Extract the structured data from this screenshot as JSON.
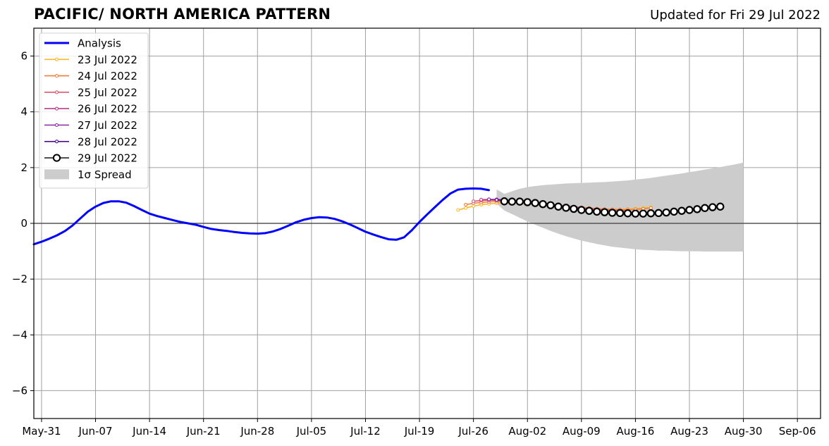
{
  "chart_data": {
    "type": "line",
    "title": "PACIFIC/ NORTH AMERICA PATTERN",
    "subtitle": "Updated for Fri 29 Jul 2022",
    "xlabel": "",
    "ylabel": "",
    "xlim": [
      "2022-05-30",
      "2022-09-09"
    ],
    "ylim": [
      -7,
      7
    ],
    "grid": true,
    "legend_position": "top-left",
    "x_tick_labels": [
      "May-31",
      "Jun-07",
      "Jun-14",
      "Jun-21",
      "Jun-28",
      "Jul-05",
      "Jul-12",
      "Jul-19",
      "Jul-26",
      "Aug-02",
      "Aug-09",
      "Aug-16",
      "Aug-23",
      "Aug-30",
      "Sep-06"
    ],
    "x_tick_dates": [
      "2022-05-31",
      "2022-06-07",
      "2022-06-14",
      "2022-06-21",
      "2022-06-28",
      "2022-07-05",
      "2022-07-12",
      "2022-07-19",
      "2022-07-26",
      "2022-08-02",
      "2022-08-09",
      "2022-08-16",
      "2022-08-23",
      "2022-08-30",
      "2022-09-06"
    ],
    "y_ticks": [
      -6,
      -4,
      -2,
      0,
      2,
      4,
      6
    ],
    "y_tick_labels": [
      "−6",
      "−4",
      "−2",
      "0",
      "2",
      "4",
      "6"
    ],
    "analysis": {
      "name": "Analysis",
      "color": "#0000ff",
      "start_date": "2022-05-30",
      "values": [
        -0.75,
        -0.66,
        -0.55,
        -0.43,
        -0.28,
        -0.08,
        0.17,
        0.42,
        0.6,
        0.73,
        0.79,
        0.79,
        0.74,
        0.62,
        0.48,
        0.35,
        0.26,
        0.19,
        0.12,
        0.05,
        0.0,
        -0.05,
        -0.13,
        -0.2,
        -0.24,
        -0.27,
        -0.31,
        -0.34,
        -0.36,
        -0.37,
        -0.35,
        -0.29,
        -0.2,
        -0.08,
        0.04,
        0.13,
        0.19,
        0.22,
        0.21,
        0.16,
        0.07,
        -0.04,
        -0.17,
        -0.3,
        -0.4,
        -0.49,
        -0.57,
        -0.59,
        -0.5,
        -0.25,
        0.05,
        0.32,
        0.58,
        0.84,
        1.07,
        1.21,
        1.24,
        1.25,
        1.24,
        1.19
      ]
    },
    "forecasts": [
      {
        "name": "23 Jul 2022",
        "color": "#f8b82e",
        "start_date": "2022-07-24",
        "values": [
          0.48,
          0.55,
          0.62,
          0.67,
          0.7,
          0.72,
          0.73,
          0.73,
          0.72,
          0.7,
          0.68,
          0.66,
          0.63,
          0.6,
          0.58,
          0.56,
          0.54,
          0.52,
          0.51,
          0.5,
          0.5,
          0.5,
          0.51,
          0.53,
          0.55,
          0.58
        ]
      },
      {
        "name": "24 Jul 2022",
        "color": "#f17d3c",
        "start_date": "2022-07-25",
        "values": [
          0.67,
          0.72,
          0.75,
          0.77,
          0.78,
          0.78,
          0.78,
          0.77,
          0.75,
          0.73,
          0.71,
          0.68,
          0.65,
          0.62,
          0.6,
          0.57,
          0.55,
          0.53,
          0.51,
          0.5,
          0.49,
          0.49,
          0.5,
          0.52,
          0.55
        ]
      },
      {
        "name": "25 Jul 2022",
        "color": "#dd5671",
        "start_date": "2022-07-26",
        "values": [
          0.79,
          0.82,
          0.83,
          0.83,
          0.82,
          0.8,
          0.78,
          0.76,
          0.73,
          0.7,
          0.67,
          0.64,
          0.61,
          0.58,
          0.55,
          0.52,
          0.5,
          0.48,
          0.46,
          0.45,
          0.45
        ]
      },
      {
        "name": "26 Jul 2022",
        "color": "#b83d8b",
        "start_date": "2022-07-27",
        "values": [
          0.85,
          0.86,
          0.86,
          0.84,
          0.82,
          0.8,
          0.77,
          0.74,
          0.71,
          0.68,
          0.65,
          0.62,
          0.59,
          0.56
        ]
      },
      {
        "name": "27 Jul 2022",
        "color": "#8a25a4",
        "start_date": "2022-07-28",
        "values": [
          0.86,
          0.85,
          0.84,
          0.82,
          0.8,
          0.78,
          0.75,
          0.72,
          0.69,
          0.66
        ]
      },
      {
        "name": "28 Jul 2022",
        "color": "#4b0f8f",
        "start_date": "2022-07-29",
        "values": [
          0.84,
          0.83,
          0.81,
          0.79,
          0.77,
          0.75,
          0.72,
          0.69
        ]
      }
    ],
    "latest_forecast": {
      "name": "29 Jul 2022",
      "color": "#000000",
      "start_date": "2022-07-30",
      "values": [
        0.79,
        0.78,
        0.78,
        0.76,
        0.73,
        0.69,
        0.65,
        0.6,
        0.56,
        0.52,
        0.48,
        0.45,
        0.42,
        0.4,
        0.38,
        0.37,
        0.36,
        0.35,
        0.35,
        0.36,
        0.37,
        0.39,
        0.42,
        0.45,
        0.48,
        0.51,
        0.55,
        0.58,
        0.6
      ]
    },
    "spread": {
      "name": "1σ Spread",
      "color": "#cccccc",
      "start_date": "2022-07-29",
      "upper": [
        1.22,
        1.06,
        1.15,
        1.24,
        1.3,
        1.34,
        1.37,
        1.39,
        1.41,
        1.43,
        1.44,
        1.45,
        1.46,
        1.47,
        1.48,
        1.5,
        1.52,
        1.54,
        1.57,
        1.6,
        1.63,
        1.67,
        1.71,
        1.75,
        1.79,
        1.84,
        1.88,
        1.93,
        1.97,
        2.02,
        2.07,
        2.12,
        2.18
      ],
      "lower": [
        0.7,
        0.46,
        0.33,
        0.2,
        0.07,
        -0.05,
        -0.16,
        -0.27,
        -0.37,
        -0.46,
        -0.54,
        -0.62,
        -0.68,
        -0.74,
        -0.79,
        -0.84,
        -0.87,
        -0.9,
        -0.93,
        -0.95,
        -0.96,
        -0.98,
        -0.98,
        -0.99,
        -1.0,
        -1.0,
        -1.0,
        -1.01,
        -1.01,
        -1.01,
        -1.01,
        -1.01,
        -1.01
      ]
    }
  }
}
